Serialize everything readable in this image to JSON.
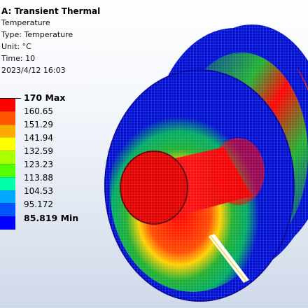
{
  "header": {
    "title": "A: Transient Thermal",
    "lines": [
      "Temperature",
      "Type: Temperature",
      "Unit: °C",
      "Time: 10",
      "2023/4/12 16:03"
    ]
  },
  "legend": {
    "max_label": "170 Max",
    "min_label": "85.819 Min",
    "ticks": [
      "160.65",
      "151.29",
      "141.94",
      "132.59",
      "123.23",
      "113.88",
      "104.53",
      "95.172"
    ],
    "colors": [
      "#ff0000",
      "#ff5500",
      "#ffaa00",
      "#ffff00",
      "#aaff00",
      "#55ff00",
      "#00ffaa",
      "#00aaff",
      "#0055ff",
      "#0000ff"
    ]
  },
  "model": {
    "description_icon": "cylinder-thermal-contour",
    "colors": {
      "hot": "#e00000",
      "warm": "#ff5500",
      "mid": "#ffd400",
      "cool": "#20b030",
      "cold": "#0010d0"
    }
  }
}
